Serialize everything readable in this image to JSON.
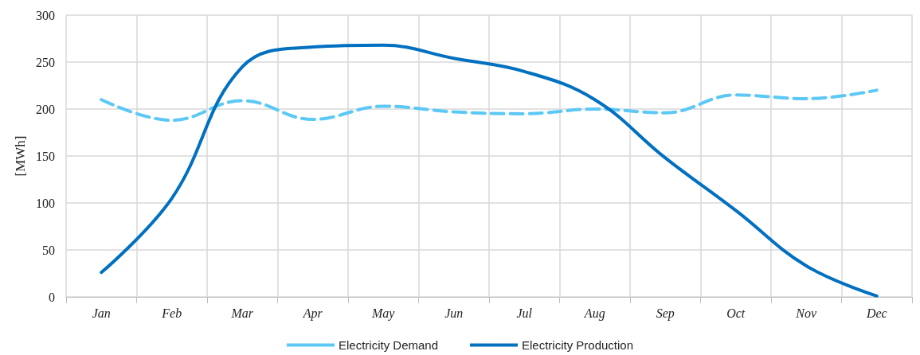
{
  "chart_data": {
    "type": "line",
    "ylabel": "[MWh]",
    "categories": [
      "Jan",
      "Feb",
      "Mar",
      "Apr",
      "May",
      "Jun",
      "Jul",
      "Aug",
      "Sep",
      "Oct",
      "Nov",
      "Dec"
    ],
    "series": [
      {
        "name": "Electricity Demand",
        "color": "#5bc8f5",
        "line_style": "dashed",
        "values": [
          210,
          188,
          209,
          189,
          203,
          197,
          195,
          200,
          196,
          215,
          211,
          220
        ]
      },
      {
        "name": "Electricity Production",
        "color": "#0070c0",
        "line_style": "solid",
        "values": [
          26,
          105,
          245,
          266,
          268,
          254,
          240,
          210,
          148,
          92,
          33,
          1
        ]
      }
    ],
    "ylim": [
      0,
      300
    ],
    "yticks": [
      0,
      50,
      100,
      150,
      200,
      250,
      300
    ],
    "grid": true,
    "legend": "bottom",
    "marker": "none"
  }
}
